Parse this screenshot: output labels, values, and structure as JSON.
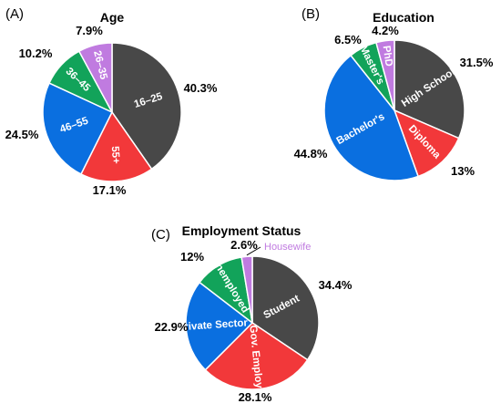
{
  "chart_data": [
    {
      "type": "pie",
      "panel": "(A)",
      "title": "Age",
      "slices": [
        {
          "label": "16–25",
          "value": 40.3,
          "pct_label": "40.3%",
          "color": "#484848"
        },
        {
          "label": "55+",
          "value": 17.1,
          "pct_label": "17.1%",
          "color": "#f2383a"
        },
        {
          "label": "46–55",
          "value": 24.5,
          "pct_label": "24.5%",
          "color": "#0a6fe0"
        },
        {
          "label": "36–45",
          "value": 10.2,
          "pct_label": "10.2%",
          "color": "#12a35a"
        },
        {
          "label": "26–35",
          "value": 7.9,
          "pct_label": "7.9%",
          "color": "#c07be0"
        }
      ]
    },
    {
      "type": "pie",
      "panel": "(B)",
      "title": "Education",
      "slices": [
        {
          "label": "High School",
          "value": 31.5,
          "pct_label": "31.5%",
          "color": "#484848"
        },
        {
          "label": "Diploma",
          "value": 13,
          "pct_label": "13%",
          "color": "#f2383a"
        },
        {
          "label": "Bachelor's",
          "value": 44.8,
          "pct_label": "44.8%",
          "color": "#0a6fe0"
        },
        {
          "label": "Master's",
          "value": 6.5,
          "pct_label": "6.5%",
          "color": "#12a35a"
        },
        {
          "label": "PhD",
          "value": 4.2,
          "pct_label": "4.2%",
          "color": "#c07be0"
        }
      ]
    },
    {
      "type": "pie",
      "panel": "(C)",
      "title": "Employment Status",
      "slices": [
        {
          "label": "Student",
          "value": 34.4,
          "pct_label": "34.4%",
          "color": "#484848"
        },
        {
          "label": "Gov. Employee",
          "value": 28.1,
          "pct_label": "28.1%",
          "color": "#f2383a"
        },
        {
          "label": "Private Sector",
          "value": 22.9,
          "pct_label": "22.9%",
          "color": "#0a6fe0"
        },
        {
          "label": "Unemployed",
          "value": 12,
          "pct_label": "12%",
          "color": "#12a35a"
        },
        {
          "label": "Housewife",
          "value": 2.6,
          "pct_label": "2.6%",
          "color": "#c07be0"
        }
      ]
    }
  ]
}
